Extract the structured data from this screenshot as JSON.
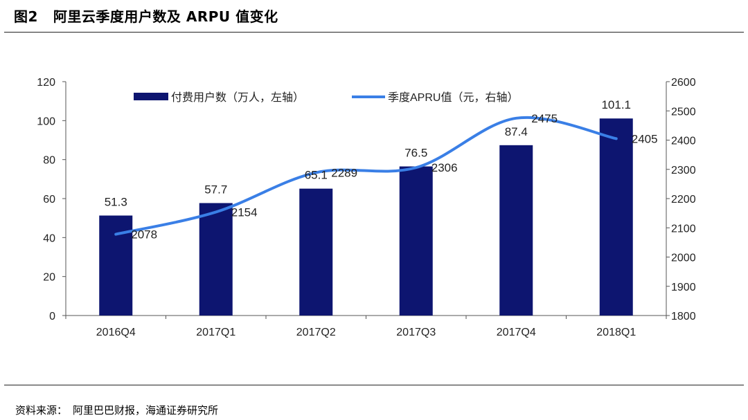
{
  "figure": {
    "label": "图2",
    "title": "阿里云季度用户数及 ARPU 值变化"
  },
  "source": {
    "label": "资料来源：",
    "text": "阿里巴巴财报，海通证券研究所"
  },
  "colors": {
    "bar": "#0d1570",
    "line": "#3a7fe6",
    "axis": "#555555"
  },
  "chart_data": {
    "type": "bar",
    "categories": [
      "2016Q4",
      "2017Q1",
      "2017Q2",
      "2017Q3",
      "2017Q4",
      "2018Q1"
    ],
    "series": [
      {
        "name": "付费用户数（万人，左轴）",
        "type": "bar",
        "axis": "left",
        "values": [
          51.3,
          57.7,
          65.1,
          76.5,
          87.4,
          101.1
        ]
      },
      {
        "name": "季度APRU值（元，右轴）",
        "type": "line",
        "axis": "right",
        "values": [
          2078,
          2154,
          2289,
          2306,
          2475,
          2405
        ]
      }
    ],
    "y_left": {
      "min": 0,
      "max": 120,
      "step": 20
    },
    "y_right": {
      "min": 1800,
      "max": 2600,
      "step": 100
    },
    "legend": "top-center",
    "grid": false
  }
}
